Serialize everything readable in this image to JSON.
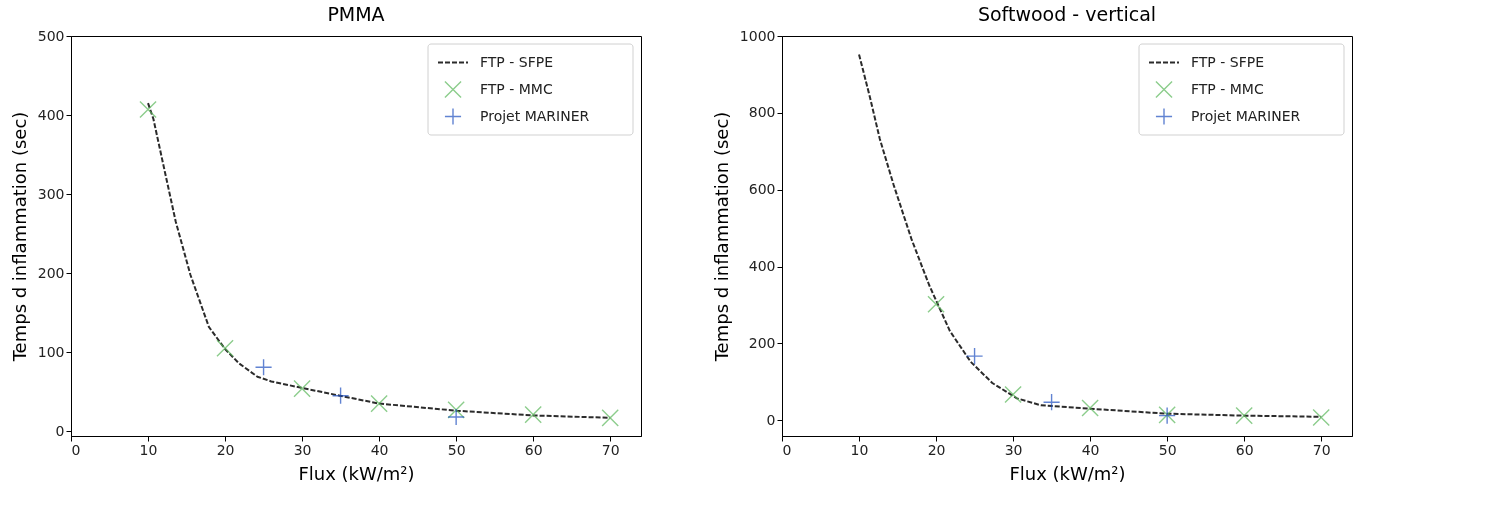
{
  "chart_data": [
    {
      "type": "scatter",
      "title": "PMMA",
      "xlabel": "Flux (kW/m²)",
      "ylabel": "Temps d inflammation (sec)",
      "xlim": [
        0,
        74
      ],
      "ylim": [
        -6,
        500
      ],
      "xticks": [
        0,
        10,
        20,
        30,
        40,
        50,
        60,
        70
      ],
      "yticks": [
        0,
        100,
        200,
        300,
        400,
        500
      ],
      "grid": false,
      "legend": "top right",
      "series": [
        {
          "name": "FTP - SFPE",
          "type": "line",
          "color": "#2b2b2b",
          "line_style": "dashed",
          "x": [
            10,
            10.7,
            11.9,
            13.6,
            15.5,
            17.9,
            20,
            21.8,
            24.2,
            26,
            29.9,
            34.9,
            40,
            50,
            60,
            70
          ],
          "values": [
            415,
            395,
            341,
            265,
            198,
            132,
            104,
            86,
            69,
            63,
            55,
            45,
            35,
            26,
            20,
            17
          ]
        },
        {
          "name": "FTP - MMC",
          "color": "#5cb85c",
          "marker": "x",
          "x": [
            10,
            20,
            30,
            40,
            50,
            60,
            70
          ],
          "values": [
            407,
            105,
            54,
            35,
            27,
            21,
            17
          ]
        },
        {
          "name": "Projet MARINER",
          "color": "#1f4fbf",
          "marker": "cross",
          "x": [
            25,
            35,
            50
          ],
          "values": [
            81,
            45,
            18
          ]
        }
      ]
    },
    {
      "type": "scatter",
      "title": "Softwood - vertical",
      "xlabel": "Flux (kW/m²)",
      "ylabel": "Temps d inflammation (sec)",
      "xlim": [
        0,
        74
      ],
      "ylim": [
        -41,
        1000
      ],
      "xticks": [
        0,
        10,
        20,
        30,
        40,
        50,
        60,
        70
      ],
      "yticks": [
        0,
        200,
        400,
        600,
        800,
        {
          "value": 1000,
          "label": "1000"
        }
      ],
      "grid": false,
      "legend": "top right",
      "series": [
        {
          "name": "FTP - SFPE",
          "type": "line",
          "color": "#2b2b2b",
          "line_style": "dashed",
          "x": [
            10,
            11.4,
            12.7,
            14.5,
            16.8,
            19.1,
            21.8,
            24.5,
            27.3,
            30.5,
            33.6,
            40,
            50,
            60,
            70
          ],
          "values": [
            952,
            842,
            732,
            612,
            472,
            352,
            232,
            152,
            97,
            57,
            39,
            30,
            17,
            12,
            9
          ]
        },
        {
          "name": "FTP - MMC",
          "color": "#5cb85c",
          "marker": "x",
          "x": [
            20,
            30,
            40,
            50,
            60,
            70
          ],
          "values": [
            302,
            67,
            32,
            14,
            12,
            7
          ]
        },
        {
          "name": "Projet MARINER",
          "color": "#1f4fbf",
          "marker": "cross",
          "x": [
            25,
            35,
            50
          ],
          "values": [
            167,
            47,
            12
          ]
        }
      ]
    }
  ]
}
